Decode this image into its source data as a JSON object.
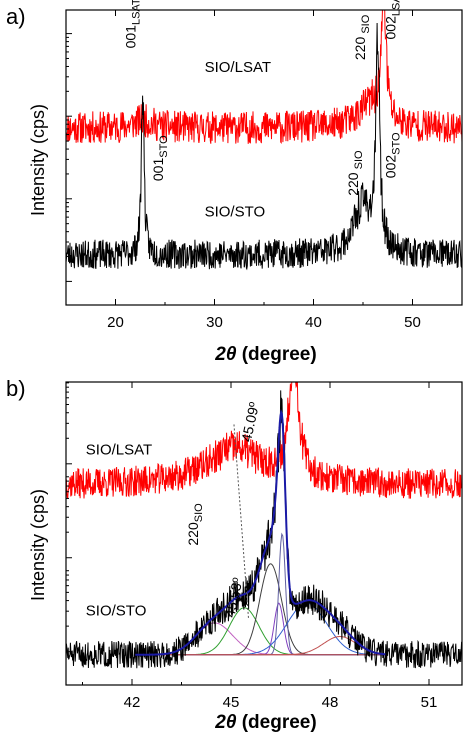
{
  "chart_data": [
    {
      "panel": "a)",
      "type": "line",
      "xlabel_symbol": "2θ",
      "xlabel_rest": " (degree)",
      "ylabel": "Intensity (cps)",
      "xlim": [
        15,
        55
      ],
      "xticks": [
        20,
        30,
        40,
        50
      ],
      "y_scale": "log",
      "y_ticks_unlabeled": true,
      "grid": false,
      "series": [
        {
          "name": "SIO/LSAT",
          "color": "#ff0000",
          "baseline": 6.0,
          "peaks": [
            {
              "x": 22.8,
              "height": 0.25,
              "width": 1.2
            },
            {
              "x": 45.8,
              "height": 0.8,
              "width": 1.5
            },
            {
              "x": 47.1,
              "height": 4.1,
              "width": 0.28
            }
          ]
        },
        {
          "name": "SIO/STO",
          "color": "#000000",
          "baseline": 1.7,
          "peaks": [
            {
              "x": 22.75,
              "height": 5.8,
              "width": 0.16
            },
            {
              "x": 45.0,
              "height": 1.7,
              "width": 1.1
            },
            {
              "x": 46.5,
              "height": 7.0,
              "width": 0.22
            }
          ]
        }
      ],
      "annotations": [
        {
          "text": "001",
          "sub": "LSAT",
          "x": 22.0,
          "level": 8.7
        },
        {
          "text": "220",
          "sub": " SIO",
          "x": 45.2,
          "level": 8.3
        },
        {
          "text": "002",
          "sub": "LSAT",
          "x": 48.3,
          "level": 9.0
        },
        {
          "text": "001",
          "sub": "STO",
          "x": 24.8,
          "level": 4.2
        },
        {
          "text": "220",
          "sub": " SIO",
          "x": 44.5,
          "level": 3.7
        },
        {
          "text": "002",
          "sub": "STO",
          "x": 48.3,
          "level": 4.3
        }
      ],
      "labels": [
        {
          "text": "SIO/LSAT",
          "x": 29.0,
          "level": 7.9
        },
        {
          "text": "SIO/STO",
          "x": 29.0,
          "level": 3.0
        }
      ]
    },
    {
      "panel": "b)",
      "type": "line",
      "xlabel_symbol": "2θ",
      "xlabel_rest": " (degree)",
      "ylabel": "Intensity (cps)",
      "xlim": [
        40,
        52
      ],
      "xticks": [
        42,
        45,
        48,
        51
      ],
      "y_scale": "log",
      "y_ticks_unlabeled": true,
      "grid": false,
      "series": [
        {
          "name": "SIO/LSAT",
          "color": "#ff0000",
          "baseline": 6.6,
          "peaks": [
            {
              "x": 45.1,
              "height": 1.2,
              "width": 1.0
            },
            {
              "x": 46.9,
              "height": 4.2,
              "width": 0.17
            }
          ]
        },
        {
          "name": "SIO/STO",
          "color": "#000000",
          "baseline": 1.0,
          "peaks": [
            {
              "x": 44.5,
              "height": 1.05,
              "width": 0.55
            },
            {
              "x": 45.4,
              "height": 1.55,
              "width": 0.45
            },
            {
              "x": 46.2,
              "height": 3.0,
              "width": 0.33
            },
            {
              "x": 46.45,
              "height": 1.7,
              "width": 0.14
            },
            {
              "x": 46.55,
              "height": 4.0,
              "width": 0.1
            },
            {
              "x": 47.3,
              "height": 1.7,
              "width": 0.6
            },
            {
              "x": 48.3,
              "height": 0.6,
              "width": 0.5
            }
          ]
        }
      ],
      "fit_envelope_color": "#1a1aa6",
      "fit_components": [
        {
          "x": 44.5,
          "height": 1.05,
          "width": 0.55,
          "color": "#c060c0"
        },
        {
          "x": 45.4,
          "height": 1.55,
          "width": 0.45,
          "color": "#30a030"
        },
        {
          "x": 46.2,
          "height": 3.0,
          "width": 0.33,
          "color": "#404040"
        },
        {
          "x": 46.45,
          "height": 1.7,
          "width": 0.14,
          "color": "#8040c0"
        },
        {
          "x": 46.55,
          "height": 4.0,
          "width": 0.1,
          "color": "#6060a0"
        },
        {
          "x": 47.3,
          "height": 1.7,
          "width": 0.6,
          "color": "#3060d0"
        },
        {
          "x": 48.3,
          "height": 0.6,
          "width": 0.5,
          "color": "#c05050"
        }
      ],
      "guide_line": {
        "x1": 45.09,
        "x2": 45.53
      },
      "annotations": [
        {
          "text": "45.09º",
          "x": 45.6,
          "level": 8.0,
          "rotate": -78
        },
        {
          "text": "45.53º",
          "x": 45.1,
          "level": 2.2,
          "rotate": -78
        },
        {
          "text": "220",
          "sub": "SIO",
          "x": 44.0,
          "level": 4.6
        }
      ],
      "labels": [
        {
          "text": "SIO/LSAT",
          "x": 40.6,
          "level": 7.6
        },
        {
          "text": "SIO/STO",
          "x": 40.6,
          "level": 2.3
        }
      ]
    }
  ]
}
